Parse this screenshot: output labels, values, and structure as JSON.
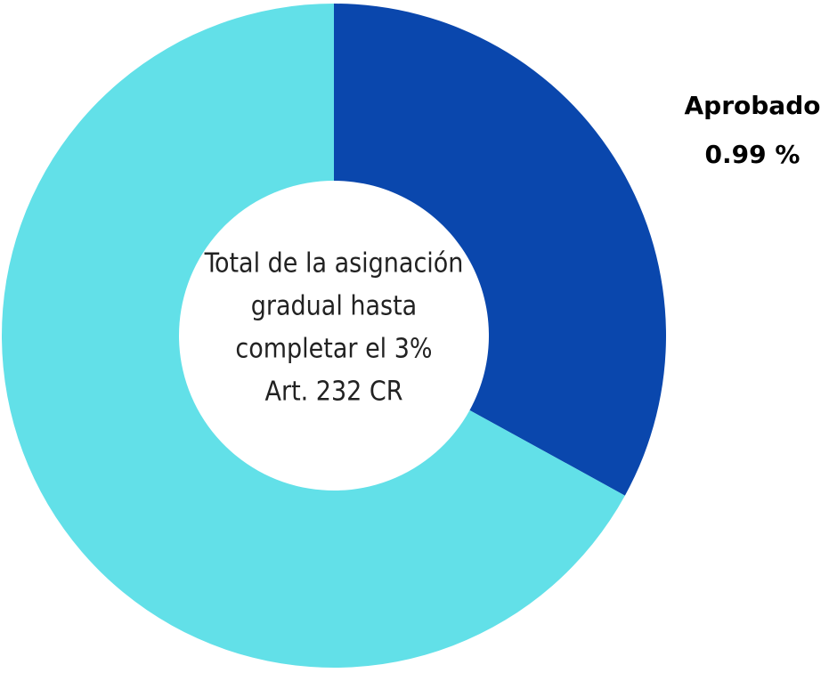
{
  "chart_data": {
    "type": "donut",
    "categories": [
      "Aprobado",
      null
    ],
    "values": [
      0.99,
      2.01
    ],
    "value_labels": [
      "0.99 %",
      null
    ],
    "colors": [
      "#0a47ad",
      "#62e0e8"
    ],
    "center_text": [
      "Total de la asignación",
      "gradual hasta",
      "completar el 3%",
      "Art. 232 CR"
    ]
  }
}
